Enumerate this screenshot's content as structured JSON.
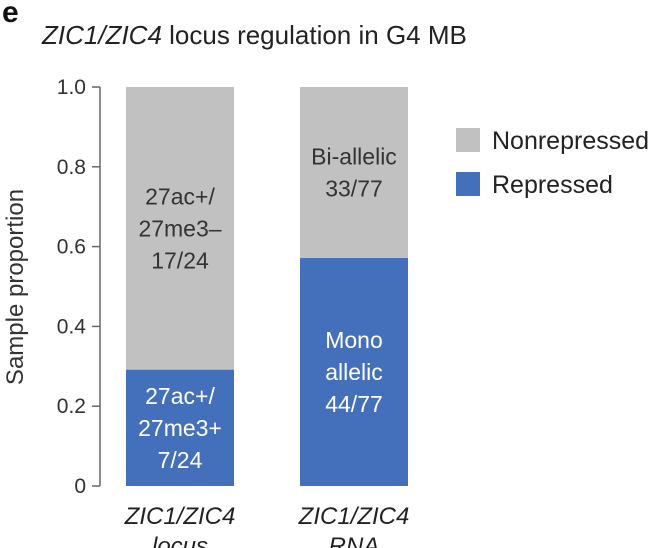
{
  "panel_letter": "e",
  "colors": {
    "nonrepressed": "#c1c1c1",
    "repressed": "#4470bb",
    "axis": "#666666"
  },
  "chart_data": {
    "type": "bar",
    "stacked": true,
    "title": "ZIC1/ZIC4 locus regulation in G4 MB",
    "title_italic_part": "ZIC1/ZIC4",
    "title_rest": " locus regulation in G4 MB",
    "xlabel": "",
    "ylabel": "Sample proportion",
    "ylim": [
      0,
      1.0
    ],
    "yticks": [
      "0",
      "0.2",
      "0.4",
      "0.6",
      "0.8",
      "1.0"
    ],
    "categories": [
      {
        "line1": "ZIC1/ZIC4",
        "line2": "locus"
      },
      {
        "line1": "ZIC1/ZIC4",
        "line2": "RNA"
      }
    ],
    "series": [
      {
        "name": "Repressed",
        "values": [
          0.2917,
          0.5714
        ],
        "labels": [
          [
            "27ac+/",
            "27me3+",
            "7/24"
          ],
          [
            "Mono",
            "allelic",
            "44/77"
          ]
        ]
      },
      {
        "name": "Nonrepressed",
        "values": [
          0.7083,
          0.4286
        ],
        "labels": [
          [
            "27ac+/",
            "27me3–",
            "17/24"
          ],
          [
            "Bi-allelic",
            "33/77"
          ]
        ]
      }
    ],
    "legend": {
      "placement": "right",
      "entries": [
        "Nonrepressed",
        "Repressed"
      ]
    }
  }
}
